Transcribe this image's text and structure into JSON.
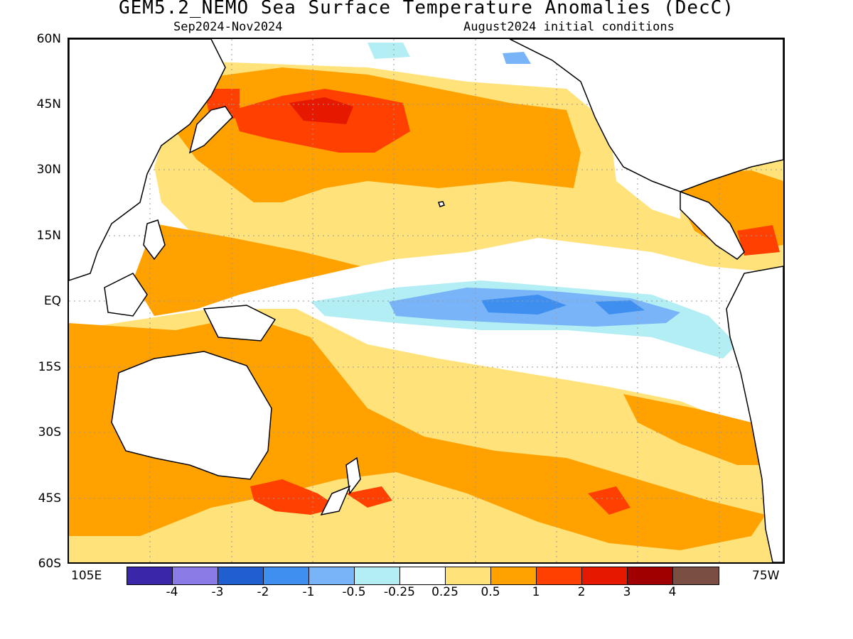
{
  "title": "GEM5.2_NEMO Sea Surface Temperature Anomalies (DecC)",
  "subtitle_left": "Sep2024-Nov2024",
  "subtitle_right": "August2024 initial conditions",
  "lat_labels": [
    "60N",
    "45N",
    "30N",
    "15N",
    "EQ",
    "15S",
    "30S",
    "45S",
    "60S"
  ],
  "lon_labels": {
    "west": "105E",
    "east": "75W"
  },
  "legend": {
    "colors": [
      "#3a26a8",
      "#8b7be6",
      "#1f5fcf",
      "#3f8ff0",
      "#78b4f7",
      "#b2eef4",
      "#ffffff",
      "#ffe27a",
      "#ffa200",
      "#ff4000",
      "#e61900",
      "#a00000",
      "#7a4e42"
    ],
    "ticks": [
      "-4",
      "-3",
      "-2",
      "-1",
      "-0.5",
      "-0.25",
      "0.25",
      "0.5",
      "1",
      "2",
      "3",
      "4"
    ]
  },
  "colors": {
    "land": "#ffffff",
    "coast": "#000000",
    "grid": "#999999"
  }
}
